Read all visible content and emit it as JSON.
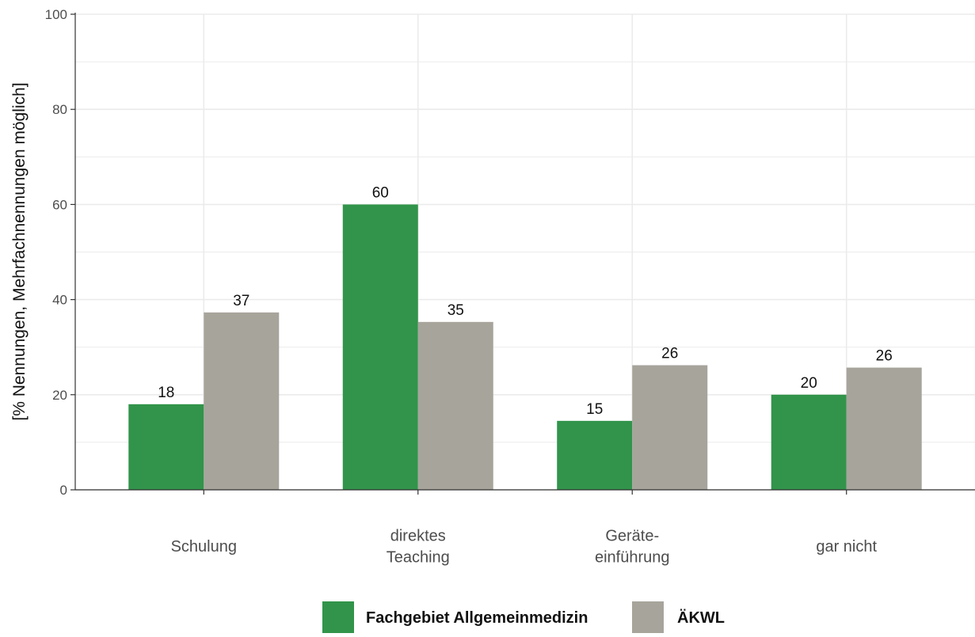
{
  "chart_data": {
    "type": "bar",
    "title": "",
    "xlabel": "",
    "ylabel": "[% Nennungen, Mehrfachnennungen möglich]",
    "ylim": [
      0,
      100
    ],
    "yticks": [
      0,
      20,
      40,
      60,
      80,
      100
    ],
    "categories": [
      [
        "Schulung"
      ],
      [
        "direktes",
        "Teaching"
      ],
      [
        "Geräte-",
        "einführung"
      ],
      [
        "gar nicht"
      ]
    ],
    "series": [
      {
        "name": "Fachgebiet Allgemeinmedizin",
        "color": "#31944a",
        "values": [
          18,
          60,
          14.5,
          20
        ],
        "labels": [
          "18",
          "60",
          "15",
          "20"
        ]
      },
      {
        "name": "ÄKWL",
        "color": "#a7a49c",
        "values": [
          37.3,
          35.3,
          26.2,
          25.7
        ],
        "labels": [
          "37",
          "35",
          "26",
          "26"
        ]
      }
    ],
    "grid": true,
    "legend": "bottom"
  }
}
